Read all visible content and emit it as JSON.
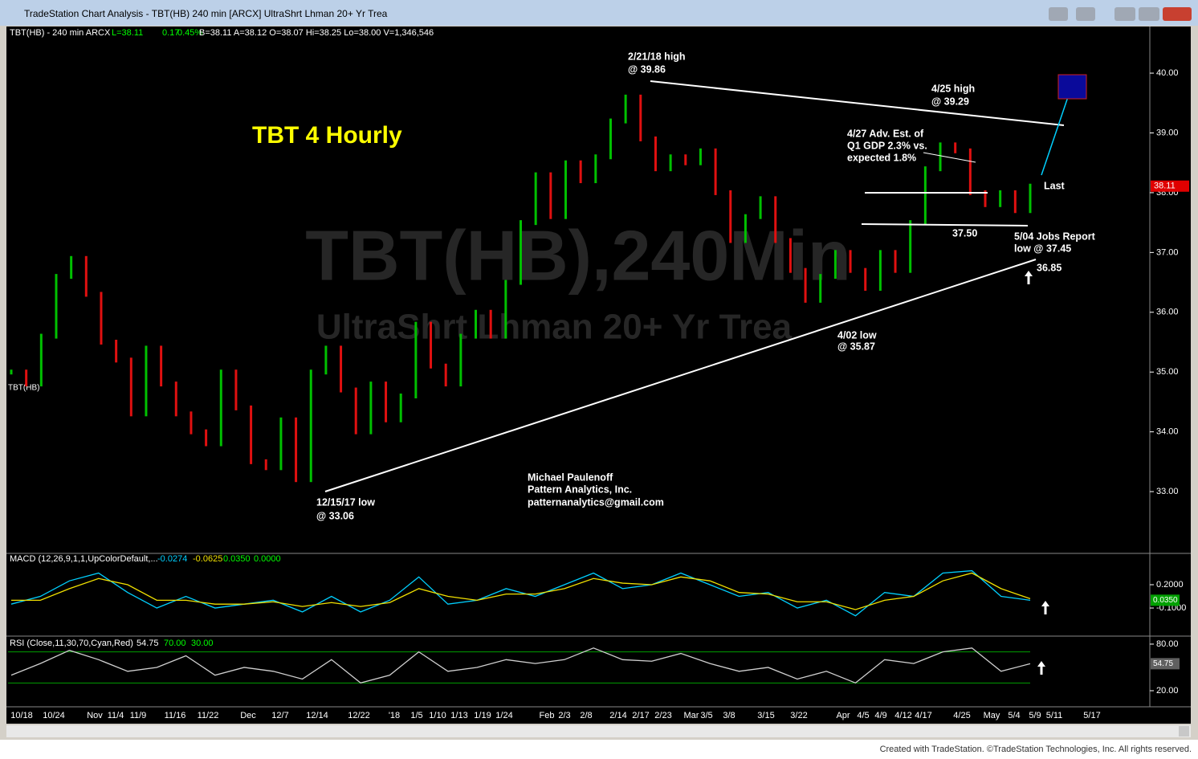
{
  "window": {
    "title": "TradeStation Chart Analysis - TBT(HB) 240 min [ARCX] UltraShrt Lhman 20+ Yr Trea"
  },
  "header": [
    "TBT(HB) - 240 min  ARCX",
    "L=38.11",
    "0.17",
    "0.45%",
    "B=38.11  A=38.12  O=38.07  Hi=38.25  Lo=38.00  V=1,346,546"
  ],
  "symbol_label": "TBT(HB)",
  "chart_data": [
    {
      "type": "bar",
      "title": "TBT 4 Hourly",
      "watermark": [
        "TBT(HB),240Min",
        "UltraShrt Lhman 20+ Yr Trea"
      ],
      "values": [
        35.0,
        34.8,
        35.6,
        36.6,
        36.9,
        36.3,
        35.5,
        35.2,
        34.3,
        35.4,
        34.8,
        34.3,
        34.0,
        33.8,
        35.0,
        34.4,
        33.5,
        33.4,
        34.2,
        33.2,
        35.0,
        35.4,
        34.7,
        34.0,
        34.8,
        34.2,
        34.6,
        35.8,
        35.1,
        34.8,
        35.6,
        36.0,
        35.6,
        36.5,
        37.5,
        38.3,
        37.6,
        38.5,
        38.2,
        38.6,
        39.2,
        39.6,
        38.9,
        38.4,
        38.6,
        38.5,
        38.7,
        38.0,
        37.2,
        37.6,
        37.9,
        37.2,
        36.7,
        36.2,
        36.6,
        37.0,
        36.7,
        36.4,
        37.0,
        36.7,
        37.5,
        38.4,
        38.8,
        38.7,
        38.0,
        37.8,
        38.0,
        37.7,
        38.11
      ],
      "up_color": "#00c000",
      "down_color": "#e01010",
      "ylim": [
        31.98,
        40.78
      ],
      "yticks": [
        {
          "value": 40,
          "label": "40.00"
        },
        {
          "value": 39,
          "label": "39.00"
        },
        {
          "value": 38,
          "label": "38.00"
        },
        {
          "value": 37,
          "label": "37.00"
        },
        {
          "value": 36,
          "label": "36.00"
        },
        {
          "value": 35,
          "label": "35.00"
        },
        {
          "value": 34,
          "label": "34.00"
        },
        {
          "value": 33,
          "label": "33.00"
        }
      ],
      "last_label": "38.11",
      "annotations": [
        "2/21/18 high",
        "@ 39.86",
        "4/25 high",
        "@ 39.29",
        "4/27 Adv. Est. of",
        "Q1 GDP 2.3% vs.",
        "expected 1.8%",
        "Last",
        "37.50",
        "5/04 Jobs Report",
        "low @ 37.45",
        "36.85",
        "4/02 low",
        "@ 35.87",
        "12/15/17 low",
        "@ 33.06",
        "Michael Paulenoff",
        "Pattern Analytics, Inc.",
        "patternanalytics@gmail.com"
      ]
    },
    {
      "type": "line",
      "legend_text": "MACD (12,26,9,1,1,UpColorDefault,...",
      "legend_values": [
        "-0.0274",
        "-0.0625",
        "0.0350",
        "0.0000"
      ],
      "series": [
        {
          "name": "MACD",
          "color": "#00d0ff",
          "values": [
            -0.05,
            0.05,
            0.25,
            0.35,
            0.1,
            -0.1,
            0.05,
            -0.1,
            -0.05,
            0.0,
            -0.15,
            0.05,
            -0.15,
            0.0,
            0.3,
            -0.05,
            0.0,
            0.15,
            0.05,
            0.2,
            0.35,
            0.15,
            0.2,
            0.35,
            0.2,
            0.05,
            0.1,
            -0.1,
            0.0,
            -0.2,
            0.1,
            0.05,
            0.35,
            0.38,
            0.05,
            0.0
          ]
        },
        {
          "name": "Signal",
          "color": "#f0e000",
          "values": [
            0.0,
            0.0,
            0.15,
            0.28,
            0.2,
            0.0,
            0.0,
            -0.05,
            -0.05,
            -0.02,
            -0.08,
            -0.03,
            -0.08,
            -0.03,
            0.15,
            0.05,
            0.0,
            0.08,
            0.08,
            0.15,
            0.28,
            0.22,
            0.2,
            0.3,
            0.25,
            0.1,
            0.08,
            -0.02,
            -0.02,
            -0.12,
            0.0,
            0.05,
            0.25,
            0.35,
            0.15,
            0.02
          ]
        }
      ],
      "ylim": [
        -0.441,
        0.593
      ],
      "yticks": [
        {
          "value": 0.2,
          "label": "0.2000"
        },
        {
          "value": -0.1,
          "label": "-0.1000"
        }
      ],
      "last_label": "0.0350"
    },
    {
      "type": "line",
      "legend_text": "RSI (Close,11,30,70,Cyan,Red)",
      "legend_values": [
        "54.75",
        "70.00",
        "30.00"
      ],
      "series": [
        {
          "name": "RSI",
          "color": "#d0d0d0",
          "values": [
            40,
            55,
            72,
            60,
            45,
            50,
            65,
            40,
            50,
            45,
            35,
            60,
            30,
            40,
            70,
            45,
            50,
            60,
            55,
            60,
            75,
            60,
            58,
            68,
            55,
            45,
            50,
            35,
            45,
            30,
            60,
            55,
            70,
            75,
            45,
            54.75
          ]
        }
      ],
      "levels": [
        70,
        30
      ],
      "ylim": [
        -0.7,
        87.2
      ],
      "yticks": [
        {
          "value": 80,
          "label": "80.00"
        },
        {
          "value": 20,
          "label": "20.00"
        }
      ],
      "last_label": "54.75"
    }
  ],
  "time_axis": [
    "10/18",
    "10/24",
    "Nov",
    "11/4",
    "11/9",
    "11/16",
    "11/22",
    "Dec",
    "12/7",
    "12/14",
    "12/22",
    "'18",
    "1/5",
    "1/10",
    "1/13",
    "1/19",
    "1/24",
    "Feb",
    "2/3",
    "2/8",
    "2/14",
    "2/17",
    "2/23",
    "Mar",
    "3/5",
    "3/8",
    "3/15",
    "3/22",
    "Apr",
    "4/5",
    "4/9",
    "4/12",
    "4/17",
    "4/25",
    "May",
    "5/4",
    "5/9",
    "5/11",
    "5/17"
  ],
  "footer": "Created with TradeStation. ©TradeStation Technologies, Inc. All rights reserved."
}
